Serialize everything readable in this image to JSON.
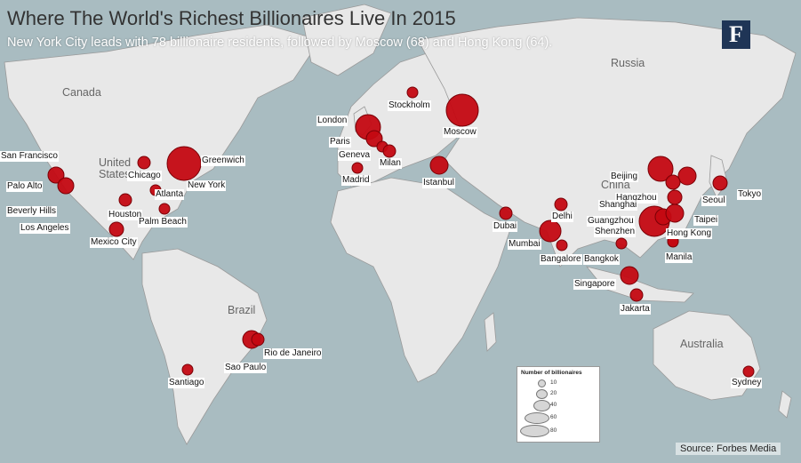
{
  "title": "Where The World's Richest Billionaires Live In 2015",
  "subtitle": "New York City leads with 78 billionaire residents, followed by Moscow (68) and Hong Kong (64).",
  "logo_text": "F",
  "source": "Source: Forbes Media",
  "colors": {
    "ocean": "#a9bcc1",
    "land": "#e8e8e8",
    "border": "#9a9a9a",
    "bubble": "#c40812",
    "bubble_edge": "#7a0006"
  },
  "regions": [
    "Canada",
    "United States",
    "Russia",
    "China",
    "Brazil",
    "Australia"
  ],
  "legend": {
    "title": "Number of billionaires",
    "values": [
      "10",
      "20",
      "40",
      "60",
      "80"
    ]
  },
  "cities": [
    "San Francisco",
    "Palo Alto",
    "Beverly Hills",
    "Los Angeles",
    "Mexico City",
    "Houston",
    "Chicago",
    "Atlanta",
    "Palm Beach",
    "Greenwich",
    "New York",
    "Sao Paulo",
    "Rio de Janeiro",
    "Santiago",
    "London",
    "Paris",
    "Geneva",
    "Madrid",
    "Milan",
    "Stockholm",
    "Moscow",
    "Istanbul",
    "Dubai",
    "Mumbai",
    "Delhi",
    "Bangalore",
    "Bangkok",
    "Singapore",
    "Jakarta",
    "Beijing",
    "Hangzhou",
    "Shanghai",
    "Guangzhou",
    "Shenzhen",
    "Hong Kong",
    "Taipei",
    "Seoul",
    "Tokyo",
    "Manila",
    "Sydney"
  ]
}
